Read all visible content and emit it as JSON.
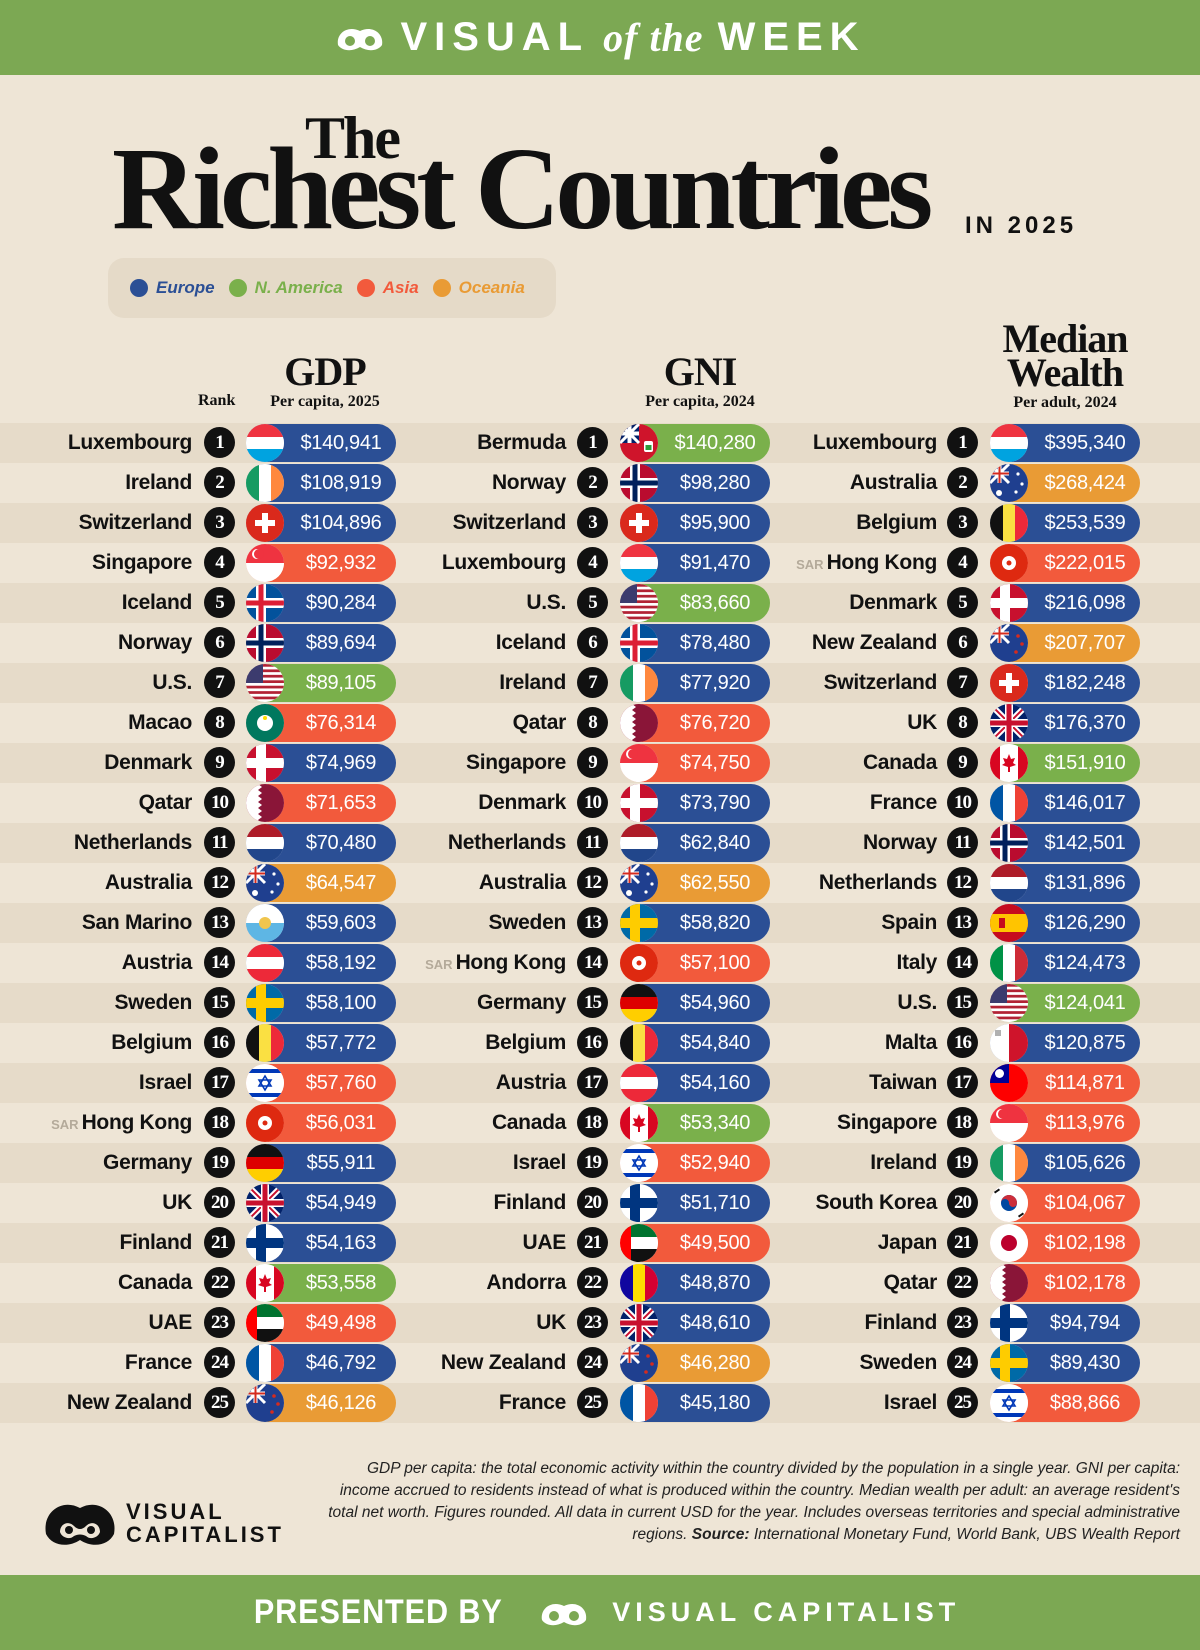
{
  "header": {
    "word_left": "VISUAL",
    "word_mid": "of the",
    "word_right": "WEEK"
  },
  "title": {
    "the": "The",
    "main": "Richest Countries",
    "sub": "IN 2025"
  },
  "colors": {
    "Europe": "#2b4f95",
    "N. America": "#7ab04b",
    "Asia": "#f25a3c",
    "Oceania": "#e99b35",
    "banner": "#7ca853",
    "background": "#eee5d6"
  },
  "legend": [
    {
      "label": "Europe",
      "region": "Europe"
    },
    {
      "label": "N. America",
      "region": "N. America"
    },
    {
      "label": "Asia",
      "region": "Asia"
    },
    {
      "label": "Oceania",
      "region": "Oceania"
    }
  ],
  "rank_label": "Rank",
  "chart_data": [
    {
      "type": "table",
      "title": "GDP",
      "subtitle": "Per capita, 2025",
      "rows": [
        {
          "rank": "1",
          "country": "Luxembourg",
          "value": "$140,941",
          "region": "Europe",
          "flag": "luxembourg"
        },
        {
          "rank": "2",
          "country": "Ireland",
          "value": "$108,919",
          "region": "Europe",
          "flag": "ireland"
        },
        {
          "rank": "3",
          "country": "Switzerland",
          "value": "$104,896",
          "region": "Europe",
          "flag": "switzerland"
        },
        {
          "rank": "4",
          "country": "Singapore",
          "value": "$92,932",
          "region": "Asia",
          "flag": "singapore"
        },
        {
          "rank": "5",
          "country": "Iceland",
          "value": "$90,284",
          "region": "Europe",
          "flag": "iceland"
        },
        {
          "rank": "6",
          "country": "Norway",
          "value": "$89,694",
          "region": "Europe",
          "flag": "norway"
        },
        {
          "rank": "7",
          "country": "U.S.",
          "value": "$89,105",
          "region": "N. America",
          "flag": "us"
        },
        {
          "rank": "8",
          "country": "Macao",
          "value": "$76,314",
          "region": "Asia",
          "flag": "macao"
        },
        {
          "rank": "9",
          "country": "Denmark",
          "value": "$74,969",
          "region": "Europe",
          "flag": "denmark"
        },
        {
          "rank": "10",
          "country": "Qatar",
          "value": "$71,653",
          "region": "Asia",
          "flag": "qatar"
        },
        {
          "rank": "11",
          "country": "Netherlands",
          "value": "$70,480",
          "region": "Europe",
          "flag": "netherlands"
        },
        {
          "rank": "12",
          "country": "Australia",
          "value": "$64,547",
          "region": "Oceania",
          "flag": "australia"
        },
        {
          "rank": "13",
          "country": "San Marino",
          "value": "$59,603",
          "region": "Europe",
          "flag": "sanmarino"
        },
        {
          "rank": "14",
          "country": "Austria",
          "value": "$58,192",
          "region": "Europe",
          "flag": "austria"
        },
        {
          "rank": "15",
          "country": "Sweden",
          "value": "$58,100",
          "region": "Europe",
          "flag": "sweden"
        },
        {
          "rank": "16",
          "country": "Belgium",
          "value": "$57,772",
          "region": "Europe",
          "flag": "belgium"
        },
        {
          "rank": "17",
          "country": "Israel",
          "value": "$57,760",
          "region": "Asia",
          "flag": "israel"
        },
        {
          "rank": "18",
          "country": "Hong Kong",
          "prefix": "SAR",
          "value": "$56,031",
          "region": "Asia",
          "flag": "hongkong"
        },
        {
          "rank": "19",
          "country": "Germany",
          "value": "$55,911",
          "region": "Europe",
          "flag": "germany"
        },
        {
          "rank": "20",
          "country": "UK",
          "value": "$54,949",
          "region": "Europe",
          "flag": "uk"
        },
        {
          "rank": "21",
          "country": "Finland",
          "value": "$54,163",
          "region": "Europe",
          "flag": "finland"
        },
        {
          "rank": "22",
          "country": "Canada",
          "value": "$53,558",
          "region": "N. America",
          "flag": "canada"
        },
        {
          "rank": "23",
          "country": "UAE",
          "value": "$49,498",
          "region": "Asia",
          "flag": "uae"
        },
        {
          "rank": "24",
          "country": "France",
          "value": "$46,792",
          "region": "Europe",
          "flag": "france"
        },
        {
          "rank": "25",
          "country": "New Zealand",
          "value": "$46,126",
          "region": "Oceania",
          "flag": "newzealand"
        }
      ]
    },
    {
      "type": "table",
      "title": "GNI",
      "subtitle": "Per capita, 2024",
      "rows": [
        {
          "rank": "1",
          "country": "Bermuda",
          "value": "$140,280",
          "region": "N. America",
          "flag": "bermuda"
        },
        {
          "rank": "2",
          "country": "Norway",
          "value": "$98,280",
          "region": "Europe",
          "flag": "norway"
        },
        {
          "rank": "3",
          "country": "Switzerland",
          "value": "$95,900",
          "region": "Europe",
          "flag": "switzerland"
        },
        {
          "rank": "4",
          "country": "Luxembourg",
          "value": "$91,470",
          "region": "Europe",
          "flag": "luxembourg"
        },
        {
          "rank": "5",
          "country": "U.S.",
          "value": "$83,660",
          "region": "N. America",
          "flag": "us"
        },
        {
          "rank": "6",
          "country": "Iceland",
          "value": "$78,480",
          "region": "Europe",
          "flag": "iceland"
        },
        {
          "rank": "7",
          "country": "Ireland",
          "value": "$77,920",
          "region": "Europe",
          "flag": "ireland"
        },
        {
          "rank": "8",
          "country": "Qatar",
          "value": "$76,720",
          "region": "Asia",
          "flag": "qatar"
        },
        {
          "rank": "9",
          "country": "Singapore",
          "value": "$74,750",
          "region": "Asia",
          "flag": "singapore"
        },
        {
          "rank": "10",
          "country": "Denmark",
          "value": "$73,790",
          "region": "Europe",
          "flag": "denmark"
        },
        {
          "rank": "11",
          "country": "Netherlands",
          "value": "$62,840",
          "region": "Europe",
          "flag": "netherlands"
        },
        {
          "rank": "12",
          "country": "Australia",
          "value": "$62,550",
          "region": "Oceania",
          "flag": "australia"
        },
        {
          "rank": "13",
          "country": "Sweden",
          "value": "$58,820",
          "region": "Europe",
          "flag": "sweden"
        },
        {
          "rank": "14",
          "country": "Hong Kong",
          "prefix": "SAR",
          "value": "$57,100",
          "region": "Asia",
          "flag": "hongkong"
        },
        {
          "rank": "15",
          "country": "Germany",
          "value": "$54,960",
          "region": "Europe",
          "flag": "germany"
        },
        {
          "rank": "16",
          "country": "Belgium",
          "value": "$54,840",
          "region": "Europe",
          "flag": "belgium"
        },
        {
          "rank": "17",
          "country": "Austria",
          "value": "$54,160",
          "region": "Europe",
          "flag": "austria"
        },
        {
          "rank": "18",
          "country": "Canada",
          "value": "$53,340",
          "region": "N. America",
          "flag": "canada"
        },
        {
          "rank": "19",
          "country": "Israel",
          "value": "$52,940",
          "region": "Asia",
          "flag": "israel"
        },
        {
          "rank": "20",
          "country": "Finland",
          "value": "$51,710",
          "region": "Europe",
          "flag": "finland"
        },
        {
          "rank": "21",
          "country": "UAE",
          "value": "$49,500",
          "region": "Asia",
          "flag": "uae"
        },
        {
          "rank": "22",
          "country": "Andorra",
          "value": "$48,870",
          "region": "Europe",
          "flag": "andorra"
        },
        {
          "rank": "23",
          "country": "UK",
          "value": "$48,610",
          "region": "Europe",
          "flag": "uk"
        },
        {
          "rank": "24",
          "country": "New Zealand",
          "value": "$46,280",
          "region": "Oceania",
          "flag": "newzealand"
        },
        {
          "rank": "25",
          "country": "France",
          "value": "$45,180",
          "region": "Europe",
          "flag": "france"
        }
      ]
    },
    {
      "type": "table",
      "title": "Median Wealth",
      "subtitle": "Per adult, 2024",
      "rows": [
        {
          "rank": "1",
          "country": "Luxembourg",
          "value": "$395,340",
          "region": "Europe",
          "flag": "luxembourg"
        },
        {
          "rank": "2",
          "country": "Australia",
          "value": "$268,424",
          "region": "Oceania",
          "flag": "australia"
        },
        {
          "rank": "3",
          "country": "Belgium",
          "value": "$253,539",
          "region": "Europe",
          "flag": "belgium"
        },
        {
          "rank": "4",
          "country": "Hong Kong",
          "prefix": "SAR",
          "value": "$222,015",
          "region": "Asia",
          "flag": "hongkong"
        },
        {
          "rank": "5",
          "country": "Denmark",
          "value": "$216,098",
          "region": "Europe",
          "flag": "denmark"
        },
        {
          "rank": "6",
          "country": "New Zealand",
          "value": "$207,707",
          "region": "Oceania",
          "flag": "newzealand"
        },
        {
          "rank": "7",
          "country": "Switzerland",
          "value": "$182,248",
          "region": "Europe",
          "flag": "switzerland"
        },
        {
          "rank": "8",
          "country": "UK",
          "value": "$176,370",
          "region": "Europe",
          "flag": "uk"
        },
        {
          "rank": "9",
          "country": "Canada",
          "value": "$151,910",
          "region": "N. America",
          "flag": "canada"
        },
        {
          "rank": "10",
          "country": "France",
          "value": "$146,017",
          "region": "Europe",
          "flag": "france"
        },
        {
          "rank": "11",
          "country": "Norway",
          "value": "$142,501",
          "region": "Europe",
          "flag": "norway"
        },
        {
          "rank": "12",
          "country": "Netherlands",
          "value": "$131,896",
          "region": "Europe",
          "flag": "netherlands"
        },
        {
          "rank": "13",
          "country": "Spain",
          "value": "$126,290",
          "region": "Europe",
          "flag": "spain"
        },
        {
          "rank": "14",
          "country": "Italy",
          "value": "$124,473",
          "region": "Europe",
          "flag": "italy"
        },
        {
          "rank": "15",
          "country": "U.S.",
          "value": "$124,041",
          "region": "N. America",
          "flag": "us"
        },
        {
          "rank": "16",
          "country": "Malta",
          "value": "$120,875",
          "region": "Europe",
          "flag": "malta"
        },
        {
          "rank": "17",
          "country": "Taiwan",
          "value": "$114,871",
          "region": "Asia",
          "flag": "taiwan"
        },
        {
          "rank": "18",
          "country": "Singapore",
          "value": "$113,976",
          "region": "Asia",
          "flag": "singapore"
        },
        {
          "rank": "19",
          "country": "Ireland",
          "value": "$105,626",
          "region": "Europe",
          "flag": "ireland"
        },
        {
          "rank": "20",
          "country": "South Korea",
          "value": "$104,067",
          "region": "Asia",
          "flag": "southkorea"
        },
        {
          "rank": "21",
          "country": "Japan",
          "value": "$102,198",
          "region": "Asia",
          "flag": "japan"
        },
        {
          "rank": "22",
          "country": "Qatar",
          "value": "$102,178",
          "region": "Asia",
          "flag": "qatar"
        },
        {
          "rank": "23",
          "country": "Finland",
          "value": "$94,794",
          "region": "Europe",
          "flag": "finland"
        },
        {
          "rank": "24",
          "country": "Sweden",
          "value": "$89,430",
          "region": "Europe",
          "flag": "sweden"
        },
        {
          "rank": "25",
          "country": "Israel",
          "value": "$88,866",
          "region": "Asia",
          "flag": "israel"
        }
      ]
    }
  ],
  "footnote": {
    "text": "GDP per capita: the total economic activity within the country divided by the population in a single year. GNI per capita: income accrued to residents instead of what is produced within the country. Median wealth per adult: an average resident's total net worth. Figures rounded. All data in current USD for the year. Includes overseas territories and special administrative regions. ",
    "source_label": "Source:",
    "source_text": " International Monetary Fund, World Bank, UBS Wealth Report"
  },
  "brand": {
    "line1": "VISUAL",
    "line2": "CAPITALIST",
    "logo_icon": "visual-capitalist-logo"
  },
  "footer": {
    "presented_by": "PRESENTED BY",
    "brand_name": "VISUAL CAPITALIST"
  }
}
